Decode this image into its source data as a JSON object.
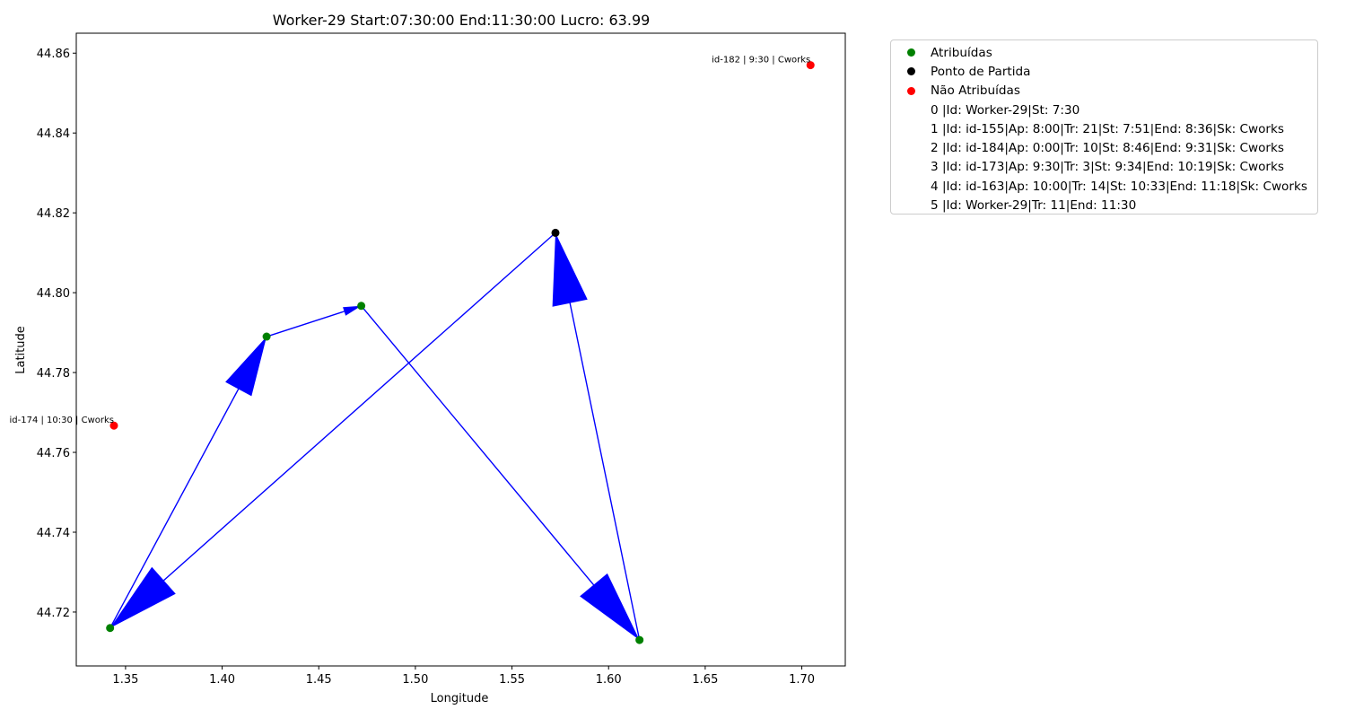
{
  "chart_data": {
    "type": "scatter",
    "title": "Worker-29 Start:07:30:00 End:11:30:00 Lucro: 63.99",
    "xlabel": "Longitude",
    "ylabel": "Latitude",
    "xlim": [
      1.3245,
      1.7225
    ],
    "ylim": [
      44.7065,
      44.865
    ],
    "xticks": [
      1.35,
      1.4,
      1.45,
      1.5,
      1.55,
      1.6,
      1.65,
      1.7
    ],
    "xtick_labels": [
      "1.35",
      "1.40",
      "1.45",
      "1.50",
      "1.55",
      "1.60",
      "1.65",
      "1.70"
    ],
    "yticks": [
      44.72,
      44.74,
      44.76,
      44.78,
      44.8,
      44.82,
      44.84,
      44.86
    ],
    "ytick_labels": [
      "44.72",
      "44.74",
      "44.76",
      "44.78",
      "44.80",
      "44.82",
      "44.84",
      "44.86"
    ],
    "grid": false,
    "legend_position": "outside top-right",
    "series": [
      {
        "name": "Atribuídas",
        "color": "#008000",
        "points": [
          {
            "x": 1.342,
            "y": 44.716
          },
          {
            "x": 1.423,
            "y": 44.789
          },
          {
            "x": 1.472,
            "y": 44.7967
          },
          {
            "x": 1.616,
            "y": 44.713
          }
        ]
      },
      {
        "name": "Ponto de Partida",
        "color": "#000000",
        "points": [
          {
            "x": 1.5725,
            "y": 44.815
          }
        ]
      },
      {
        "name": "Não Atribuídas",
        "color": "#ff0000",
        "points": [
          {
            "x": 1.7045,
            "y": 44.857,
            "label": "id-182 | 9:30 | Cworks"
          },
          {
            "x": 1.344,
            "y": 44.7667,
            "label": "id-174 | 10:30 | Cworks"
          }
        ]
      }
    ],
    "route": {
      "color": "#0000ff",
      "path": [
        {
          "x": 1.5725,
          "y": 44.815
        },
        {
          "x": 1.342,
          "y": 44.716
        },
        {
          "x": 1.423,
          "y": 44.789
        },
        {
          "x": 1.472,
          "y": 44.7967
        },
        {
          "x": 1.616,
          "y": 44.713
        },
        {
          "x": 1.5725,
          "y": 44.815
        }
      ]
    },
    "legend_text_entries": [
      "0 |Id: Worker-29|St: 7:30",
      "1 |Id: id-155|Ap: 8:00|Tr: 21|St: 7:51|End: 8:36|Sk: Cworks",
      "2 |Id: id-184|Ap: 0:00|Tr: 10|St: 8:46|End: 9:31|Sk: Cworks",
      "3 |Id: id-173|Ap: 9:30|Tr: 3|St: 9:34|End: 10:19|Sk: Cworks",
      "4 |Id: id-163|Ap: 10:00|Tr: 14|St: 10:33|End: 11:18|Sk: Cworks",
      "5 |Id: Worker-29|Tr: 11|End: 11:30"
    ]
  }
}
